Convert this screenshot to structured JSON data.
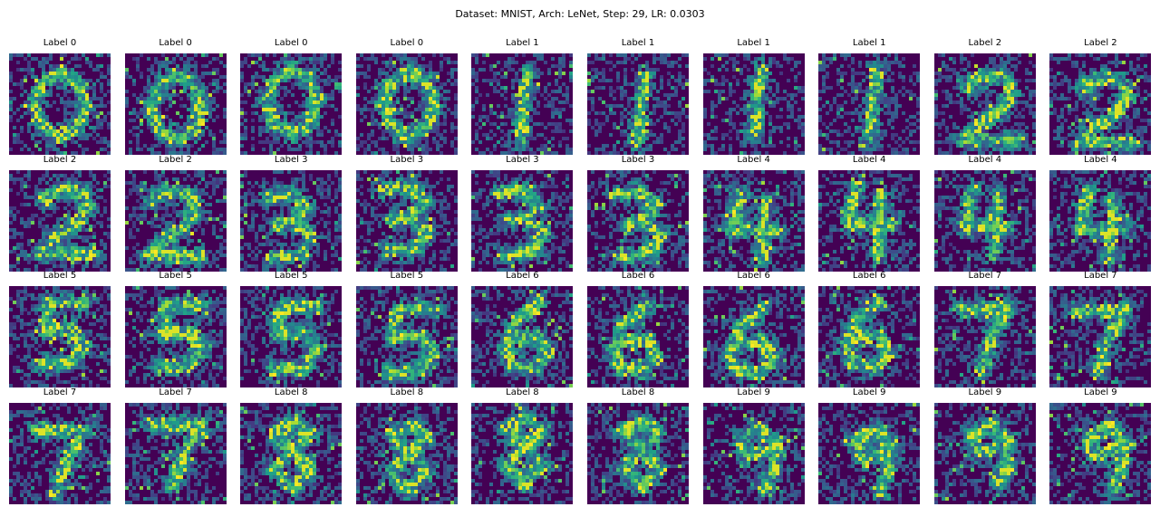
{
  "chart_data": {
    "type": "heatmap",
    "title": "Dataset: MNIST, Arch: LeNet, Step: 29, LR: 0.0303",
    "colormap": "viridis",
    "image_size": [
      28,
      28
    ],
    "panels": [
      {
        "label": "Label 0",
        "digit": 0
      },
      {
        "label": "Label 0",
        "digit": 0
      },
      {
        "label": "Label 0",
        "digit": 0
      },
      {
        "label": "Label 0",
        "digit": 0
      },
      {
        "label": "Label 1",
        "digit": 1
      },
      {
        "label": "Label 1",
        "digit": 1
      },
      {
        "label": "Label 1",
        "digit": 1
      },
      {
        "label": "Label 1",
        "digit": 1
      },
      {
        "label": "Label 2",
        "digit": 2
      },
      {
        "label": "Label 2",
        "digit": 2
      },
      {
        "label": "Label 2",
        "digit": 2
      },
      {
        "label": "Label 2",
        "digit": 2
      },
      {
        "label": "Label 3",
        "digit": 3
      },
      {
        "label": "Label 3",
        "digit": 3
      },
      {
        "label": "Label 3",
        "digit": 3
      },
      {
        "label": "Label 3",
        "digit": 3
      },
      {
        "label": "Label 4",
        "digit": 4
      },
      {
        "label": "Label 4",
        "digit": 4
      },
      {
        "label": "Label 4",
        "digit": 4
      },
      {
        "label": "Label 4",
        "digit": 4
      },
      {
        "label": "Label 5",
        "digit": 5
      },
      {
        "label": "Label 5",
        "digit": 5
      },
      {
        "label": "Label 5",
        "digit": 5
      },
      {
        "label": "Label 5",
        "digit": 5
      },
      {
        "label": "Label 6",
        "digit": 6
      },
      {
        "label": "Label 6",
        "digit": 6
      },
      {
        "label": "Label 6",
        "digit": 6
      },
      {
        "label": "Label 6",
        "digit": 6
      },
      {
        "label": "Label 7",
        "digit": 7
      },
      {
        "label": "Label 7",
        "digit": 7
      },
      {
        "label": "Label 7",
        "digit": 7
      },
      {
        "label": "Label 7",
        "digit": 7
      },
      {
        "label": "Label 8",
        "digit": 8
      },
      {
        "label": "Label 8",
        "digit": 8
      },
      {
        "label": "Label 8",
        "digit": 8
      },
      {
        "label": "Label 8",
        "digit": 8
      },
      {
        "label": "Label 9",
        "digit": 9
      },
      {
        "label": "Label 9",
        "digit": 9
      },
      {
        "label": "Label 9",
        "digit": 9
      },
      {
        "label": "Label 9",
        "digit": 9
      }
    ]
  }
}
